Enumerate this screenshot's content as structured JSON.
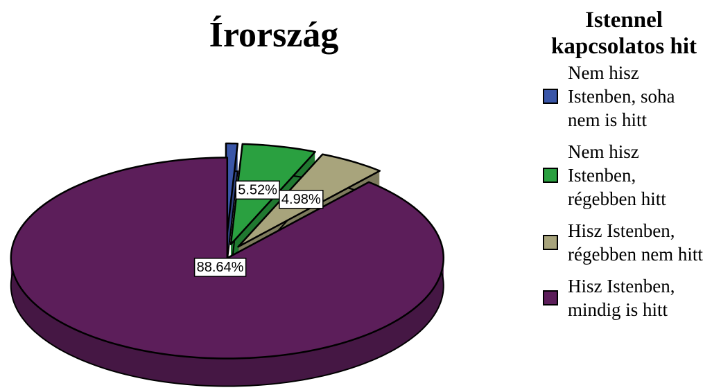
{
  "chart_data": {
    "type": "pie",
    "title": "Írország",
    "legend_title": "Istennel kapcsolatos hit",
    "categories": [
      "Nem hisz Istenben, soha nem is hitt",
      "Nem hisz Istenben, régebben hitt",
      "Hisz Istenben, régebben nem hitt",
      "Hisz Istenben, mindig is hitt"
    ],
    "values": [
      0.86,
      5.52,
      4.98,
      88.64
    ],
    "value_labels": [
      null,
      "5.52%",
      "4.98%",
      "88.64%"
    ],
    "colors": [
      "#3a56a8",
      "#2aa040",
      "#a8a47c",
      "#5c1e5a"
    ],
    "legend": "right"
  }
}
